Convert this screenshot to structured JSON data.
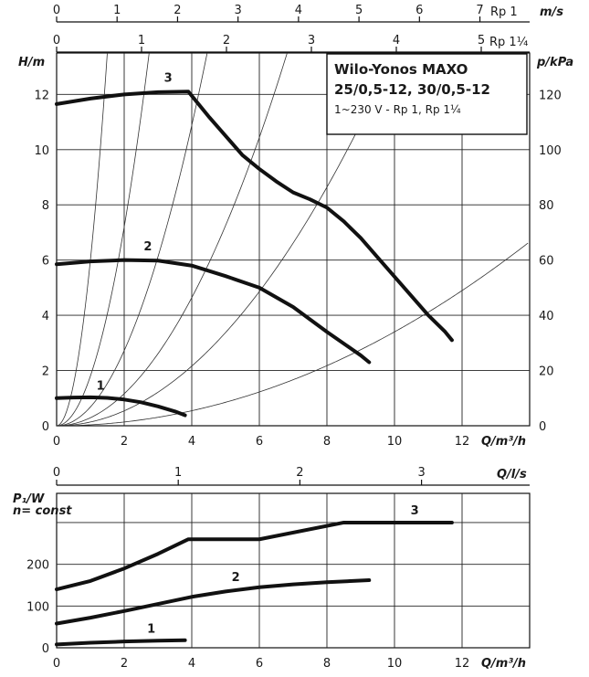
{
  "chart_data": [
    {
      "type": "line",
      "title": "Wilo-Yonos MAXO",
      "subtitle_lines": [
        "25/0,5-12, 30/0,5-12",
        "1~230 V - Rp 1, Rp 1¼"
      ],
      "xlabel": "Q/m³/h",
      "ylabel_left": "H/m",
      "ylabel_right": "p/kPa",
      "xlim": [
        0,
        14
      ],
      "ylim": [
        0,
        13.5
      ],
      "x_ticks": [
        "0",
        "2",
        "4",
        "6",
        "8",
        "10",
        "12"
      ],
      "y_ticks_left": [
        "0",
        "2",
        "4",
        "6",
        "8",
        "10",
        "12"
      ],
      "y_ticks_right": [
        "0",
        "20",
        "40",
        "60",
        "80",
        "100",
        "120"
      ],
      "top_axes": [
        {
          "label": "m/s",
          "sub_label": "Rp 1",
          "ticks": [
            "0",
            "1",
            "2",
            "3",
            "4",
            "5",
            "6",
            "7"
          ],
          "max": 7.3
        },
        {
          "label": "m/s",
          "sub_label": "Rp 1¼",
          "ticks": [
            "0",
            "1",
            "2",
            "3",
            "4",
            "5"
          ],
          "max": 5.0
        }
      ],
      "series": [
        {
          "name": "1",
          "points": [
            [
              0,
              1.0
            ],
            [
              0.5,
              1.02
            ],
            [
              1,
              1.03
            ],
            [
              1.5,
              1.01
            ],
            [
              2,
              0.95
            ],
            [
              2.5,
              0.85
            ],
            [
              3,
              0.7
            ],
            [
              3.5,
              0.52
            ],
            [
              3.8,
              0.38
            ]
          ]
        },
        {
          "name": "2",
          "points": [
            [
              0,
              5.85
            ],
            [
              1,
              5.95
            ],
            [
              2,
              6.0
            ],
            [
              3,
              5.98
            ],
            [
              4,
              5.8
            ],
            [
              5,
              5.42
            ],
            [
              6,
              5.0
            ],
            [
              7,
              4.3
            ],
            [
              8,
              3.4
            ],
            [
              9,
              2.55
            ],
            [
              9.25,
              2.3
            ]
          ]
        },
        {
          "name": "3",
          "points": [
            [
              0,
              11.65
            ],
            [
              1,
              11.85
            ],
            [
              2,
              12.0
            ],
            [
              3,
              12.08
            ],
            [
              3.9,
              12.1
            ],
            [
              4.5,
              11.2
            ],
            [
              5,
              10.5
            ],
            [
              5.5,
              9.8
            ],
            [
              6,
              9.3
            ],
            [
              6.5,
              8.85
            ],
            [
              7,
              8.45
            ],
            [
              7.5,
              8.2
            ],
            [
              8,
              7.9
            ],
            [
              8.5,
              7.4
            ],
            [
              9,
              6.8
            ],
            [
              9.5,
              6.1
            ],
            [
              10,
              5.4
            ],
            [
              10.5,
              4.7
            ],
            [
              11,
              4.0
            ],
            [
              11.5,
              3.4
            ],
            [
              11.7,
              3.1
            ]
          ]
        }
      ],
      "system_curve_coefficients": [
        60,
        18,
        6.8,
        2.9,
        1.35,
        0.34
      ]
    },
    {
      "type": "line",
      "xlabel": "Q/m³/h",
      "ylabel": "P₁/W",
      "ylabel_note": "n= const",
      "xlim": [
        0,
        14
      ],
      "ylim": [
        0,
        370
      ],
      "x_ticks": [
        "0",
        "2",
        "4",
        "6",
        "8",
        "10",
        "12"
      ],
      "y_ticks": [
        "0",
        "100",
        "200"
      ],
      "top_axis": {
        "label": "Q/l/s",
        "ticks": [
          "0",
          "1",
          "2",
          "3"
        ],
        "max": 3.889
      },
      "series": [
        {
          "name": "1",
          "points": [
            [
              0,
              8
            ],
            [
              1,
              12
            ],
            [
              2,
              15
            ],
            [
              3,
              17
            ],
            [
              3.8,
              18
            ]
          ]
        },
        {
          "name": "2",
          "points": [
            [
              0,
              58
            ],
            [
              1,
              72
            ],
            [
              2,
              88
            ],
            [
              3,
              105
            ],
            [
              4,
              122
            ],
            [
              5,
              135
            ],
            [
              6,
              145
            ],
            [
              7,
              152
            ],
            [
              8,
              157
            ],
            [
              9.25,
              162
            ]
          ]
        },
        {
          "name": "3",
          "points": [
            [
              0,
              140
            ],
            [
              1,
              160
            ],
            [
              2,
              190
            ],
            [
              3,
              225
            ],
            [
              3.9,
              260
            ],
            [
              6,
              260
            ],
            [
              8.5,
              300
            ],
            [
              11.7,
              300
            ]
          ]
        }
      ]
    }
  ]
}
